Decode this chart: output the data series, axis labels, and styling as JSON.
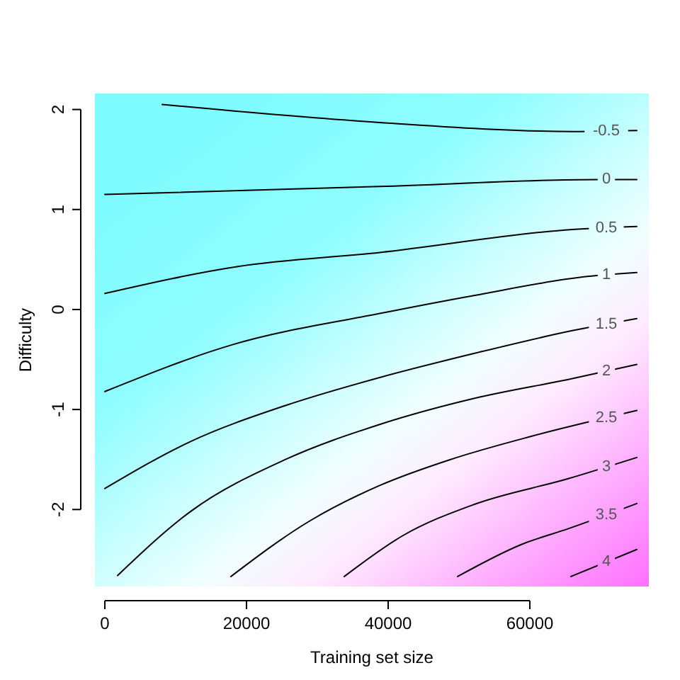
{
  "chart_data": {
    "type": "line",
    "xlabel": "Training set size",
    "ylabel": "Difficulty",
    "xlim": [
      -1400,
      76800
    ],
    "ylim": [
      -2.77,
      2.16
    ],
    "xticks": [
      0,
      20000,
      40000,
      60000
    ],
    "yticks": [
      -2,
      -1,
      0,
      1,
      2
    ],
    "marker": "none",
    "line_style": "solid",
    "series": [
      {
        "name": "-0.5",
        "color": "#000000",
        "x": [
          8100,
          38800,
          66100,
          75100
        ],
        "values": [
          2.05,
          1.87,
          1.78,
          1.79
        ]
      },
      {
        "name": "0",
        "color": "#000000",
        "x": [
          0,
          38800,
          69800,
          75100
        ],
        "values": [
          1.15,
          1.23,
          1.3,
          1.3
        ]
      },
      {
        "name": "0.5",
        "color": "#000000",
        "x": [
          0,
          18800,
          38800,
          66000,
          75100
        ],
        "values": [
          0.16,
          0.43,
          0.57,
          0.8,
          0.83
        ]
      },
      {
        "name": "1",
        "color": "#000000",
        "x": [
          0,
          18100,
          38800,
          52100,
          68100,
          75100
        ],
        "values": [
          -0.82,
          -0.35,
          -0.04,
          0.14,
          0.33,
          0.37
        ]
      },
      {
        "name": "1.5",
        "color": "#000000",
        "x": [
          0,
          12100,
          25500,
          38800,
          52100,
          66100,
          75100
        ],
        "values": [
          -1.79,
          -1.32,
          -0.96,
          -0.68,
          -0.44,
          -0.21,
          -0.09
        ]
      },
      {
        "name": "2",
        "color": "#000000",
        "x": [
          1800,
          12100,
          25500,
          38800,
          52100,
          66100,
          75100
        ],
        "values": [
          -2.66,
          -2.02,
          -1.5,
          -1.15,
          -0.89,
          -0.69,
          -0.55
        ]
      },
      {
        "name": "2.5",
        "color": "#000000",
        "x": [
          17800,
          28800,
          38800,
          48800,
          60100,
          75100
        ],
        "values": [
          -2.67,
          -2.12,
          -1.76,
          -1.5,
          -1.27,
          -1.01
        ]
      },
      {
        "name": "3",
        "color": "#000000",
        "x": [
          33800,
          42100,
          52100,
          65500,
          75100
        ],
        "values": [
          -2.67,
          -2.26,
          -1.95,
          -1.69,
          -1.48
        ]
      },
      {
        "name": "3.5",
        "color": "#000000",
        "x": [
          49800,
          58800,
          65500,
          75100
        ],
        "values": [
          -2.67,
          -2.35,
          -2.19,
          -1.94
        ]
      },
      {
        "name": "4",
        "color": "#000000",
        "x": [
          65800,
          75100
        ],
        "values": [
          -2.67,
          -2.4
        ]
      }
    ]
  }
}
